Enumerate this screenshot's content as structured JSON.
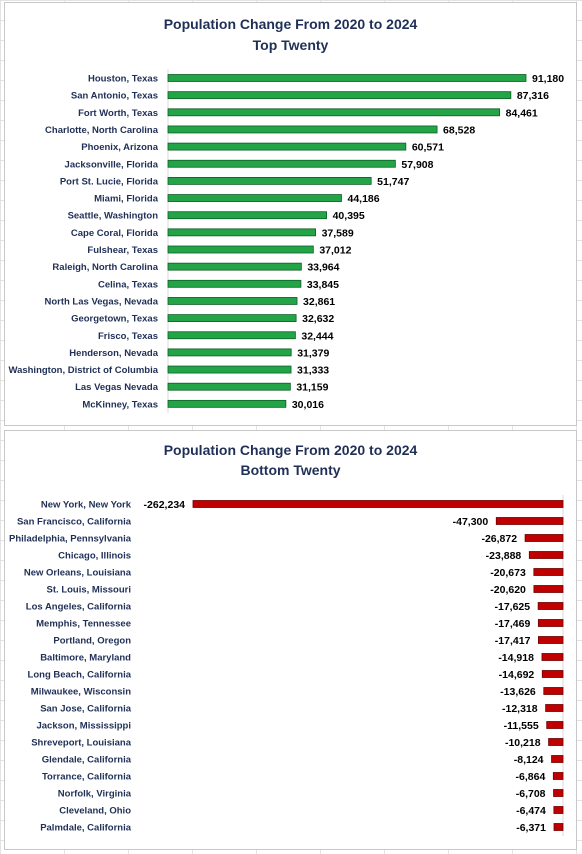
{
  "chart_data": [
    {
      "type": "bar",
      "orientation": "horizontal",
      "title": "Population Change From 2020 to 2024",
      "subtitle": "Top Twenty",
      "bar_color": "#22a447",
      "bar_border": "#0e5e26",
      "categories": [
        "Houston, Texas",
        "San Antonio, Texas",
        "Fort Worth, Texas",
        "Charlotte, North Carolina",
        "Phoenix, Arizona",
        "Jacksonville, Florida",
        "Port St. Lucie, Florida",
        "Miami, Florida",
        "Seattle, Washington",
        "Cape Coral, Florida",
        "Fulshear, Texas",
        "Raleigh, North Carolina",
        "Celina, Texas",
        "North Las Vegas, Nevada",
        "Georgetown, Texas",
        "Frisco, Texas",
        "Henderson, Nevada",
        "Washington, District of Columbia",
        "Las Vegas Nevada",
        "McKinney, Texas"
      ],
      "values": [
        91180,
        87316,
        84461,
        68528,
        60571,
        57908,
        51747,
        44186,
        40395,
        37589,
        37012,
        33964,
        33845,
        32861,
        32632,
        32444,
        31379,
        31333,
        31159,
        30016
      ],
      "value_labels": [
        "91,180",
        "87,316",
        "84,461",
        "68,528",
        "60,571",
        "57,908",
        "51,747",
        "44,186",
        "40,395",
        "37,589",
        "37,012",
        "33,964",
        "33,845",
        "32,861",
        "32,632",
        "32,444",
        "31,379",
        "31,333",
        "31,159",
        "30,016"
      ],
      "xlim": [
        0,
        91180
      ],
      "grid": false
    },
    {
      "type": "bar",
      "orientation": "horizontal",
      "title": "Population Change From 2020 to 2024",
      "subtitle": "Bottom Twenty",
      "bar_color": "#c00000",
      "bar_border": "#6e0000",
      "categories": [
        "New York, New York",
        "San Francisco, California",
        "Philadelphia, Pennsylvania",
        "Chicago, Illinois",
        "New Orleans, Louisiana",
        "St. Louis, Missouri",
        "Los Angeles, California",
        "Memphis, Tennessee",
        "Portland, Oregon",
        "Baltimore, Maryland",
        "Long Beach, California",
        "Milwaukee, Wisconsin",
        "San Jose, California",
        "Jackson, Mississippi",
        "Shreveport, Louisiana",
        "Glendale, California",
        "Torrance, California",
        "Norfolk, Virginia",
        "Cleveland, Ohio",
        "Palmdale, California"
      ],
      "values": [
        -262234,
        -47300,
        -26872,
        -23888,
        -20673,
        -20620,
        -17625,
        -17469,
        -17417,
        -14918,
        -14692,
        -13626,
        -12318,
        -11555,
        -10218,
        -8124,
        -6864,
        -6708,
        -6474,
        -6371
      ],
      "value_labels": [
        "-262,234",
        "-47,300",
        "-26,872",
        "-23,888",
        "-20,673",
        "-20,620",
        "-17,625",
        "-17,469",
        "-17,417",
        "-14,918",
        "-14,692",
        "-13,626",
        "-12,318",
        "-11,555",
        "-10,218",
        "-8,124",
        "-6,864",
        "-6,708",
        "-6,474",
        "-6,371"
      ],
      "xlim": [
        -262234,
        0
      ],
      "grid": false
    }
  ]
}
